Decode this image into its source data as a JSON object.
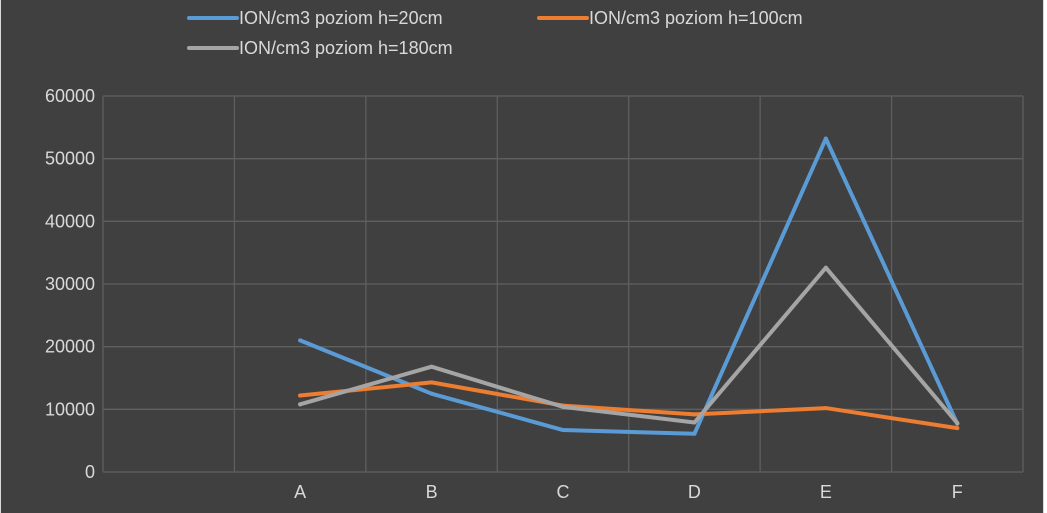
{
  "chart_data": {
    "type": "line",
    "categories": [
      "",
      "A",
      "B",
      "C",
      "D",
      "E",
      "F"
    ],
    "ylim": [
      0,
      60000
    ],
    "yticks": [
      0,
      10000,
      20000,
      30000,
      40000,
      50000,
      60000
    ],
    "grid": true,
    "legend_position": "top",
    "series": [
      {
        "name": "ION/cm3 poziom h=20cm",
        "color": "#5b9bd5",
        "values": [
          null,
          21000,
          12500,
          6700,
          6100,
          53200,
          7700
        ]
      },
      {
        "name": "ION/cm3 poziom h=100cm",
        "color": "#ed7d31",
        "values": [
          null,
          12200,
          14300,
          10600,
          9200,
          10200,
          7000
        ]
      },
      {
        "name": "ION/cm3 poziom h=180cm",
        "color": "#a5a5a5",
        "values": [
          null,
          10800,
          16800,
          10400,
          7900,
          32600,
          7800
        ]
      }
    ]
  }
}
